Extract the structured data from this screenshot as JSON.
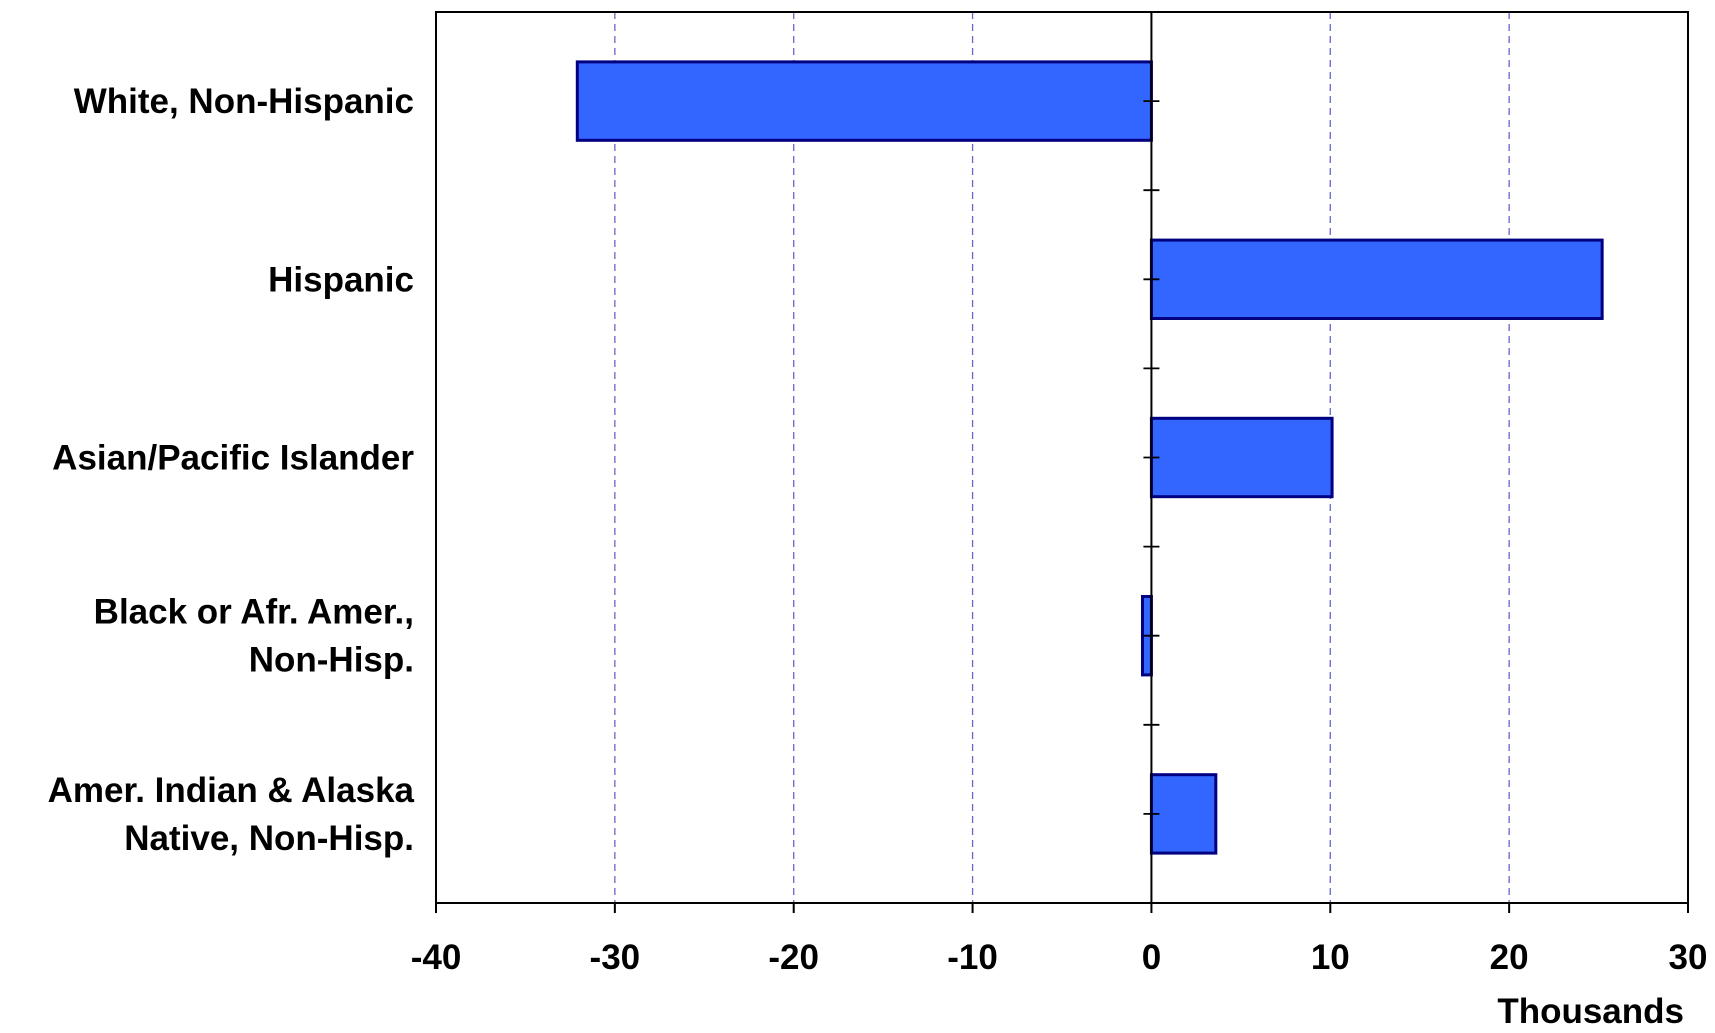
{
  "chart_data": {
    "type": "bar",
    "orientation": "horizontal",
    "categories": [
      [
        "White, Non-Hispanic"
      ],
      [
        "Hispanic"
      ],
      [
        "Asian/Pacific Islander"
      ],
      [
        "Black or Afr. Amer.,",
        "Non-Hisp."
      ],
      [
        "Amer. Indian & Alaska",
        "Native, Non-Hisp."
      ]
    ],
    "values": [
      -32.1,
      25.2,
      10.1,
      -0.5,
      3.6
    ],
    "xlim": [
      -40,
      30
    ],
    "xticks": [
      -40,
      -30,
      -20,
      -10,
      0,
      10,
      20,
      30
    ],
    "xtick_labels": [
      "-40",
      "-30",
      "-20",
      "-10",
      "0",
      "10",
      "20",
      "30"
    ],
    "xlabel": "Thousands",
    "ylabel": "",
    "title": "",
    "grid": "vertical dashed",
    "legend": "none",
    "colors": {
      "bar_fill": "#3366ff",
      "bar_stroke": "#000080",
      "grid": "#6666cc",
      "axis": "#000000"
    }
  }
}
